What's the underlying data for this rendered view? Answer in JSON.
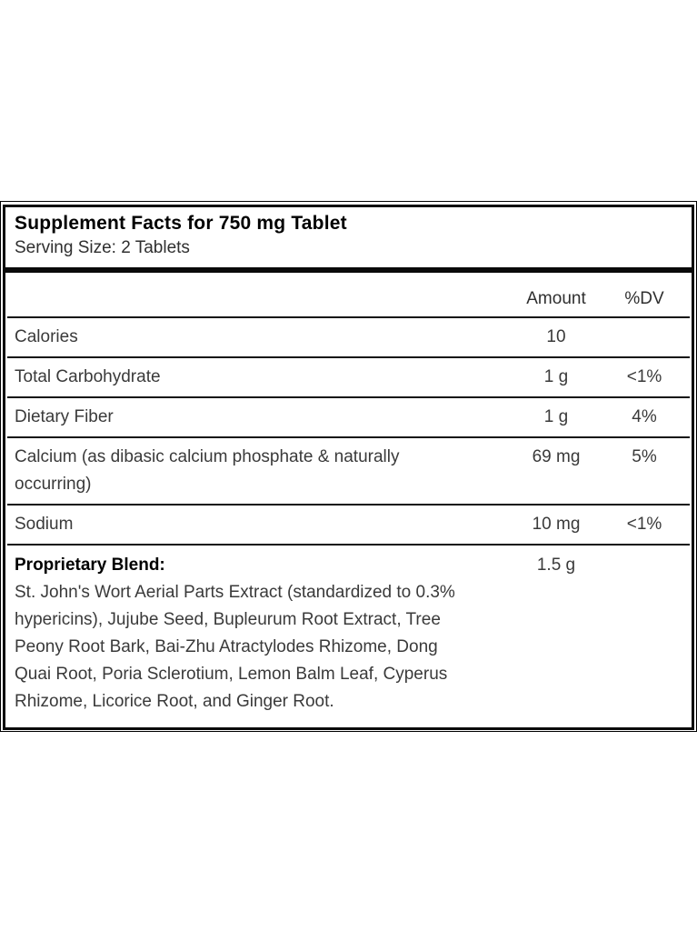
{
  "label": {
    "title": "Supplement Facts for 750 mg Tablet",
    "serving_size": "Serving Size: 2 Tablets",
    "columns": {
      "amount": "Amount",
      "dv": "%DV"
    },
    "rows": [
      {
        "name": "Calories",
        "amount": "10",
        "dv": ""
      },
      {
        "name": "Total Carbohydrate",
        "amount": "1 g",
        "dv": "<1%"
      },
      {
        "name": "Dietary Fiber",
        "amount": "1 g",
        "dv": "4%"
      },
      {
        "name": "Calcium (as dibasic calcium phosphate & naturally occurring)",
        "amount": "69 mg",
        "dv": "5%"
      },
      {
        "name": "Sodium",
        "amount": "10 mg",
        "dv": "<1%"
      }
    ],
    "blend": {
      "name": "Proprietary Blend:",
      "amount": "1.5 g",
      "dv": "",
      "description_lines": [
        "St. John's Wort Aerial Parts Extract (standardized to 0.3%",
        "hypericins), Jujube Seed, Bupleurum Root Extract, Tree",
        "Peony Root Bark, Bai-Zhu Atractylodes Rhizome, Dong",
        "Quai Root, Poria Sclerotium, Lemon Balm Leaf, Cyperus",
        "Rhizome, Licorice Root, and Ginger Root."
      ]
    },
    "colors": {
      "border": "#000000",
      "body_text": "#3a3a3a",
      "heading_text": "#000000",
      "background": "#ffffff"
    }
  }
}
